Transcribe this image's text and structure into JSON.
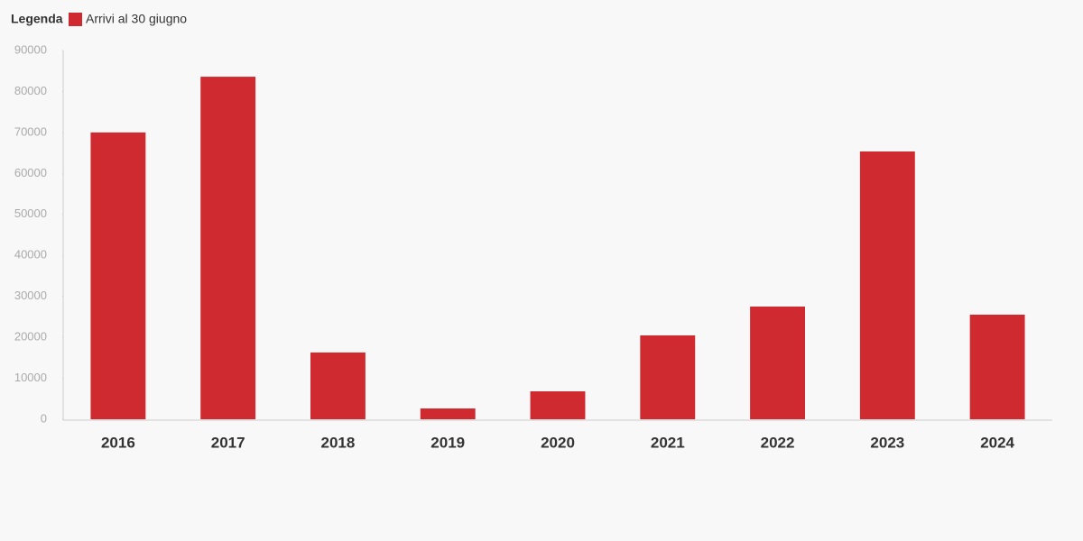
{
  "chart_data": {
    "type": "bar",
    "legend_title": "Legenda",
    "categories": [
      "2016",
      "2017",
      "2018",
      "2019",
      "2020",
      "2021",
      "2022",
      "2023",
      "2024"
    ],
    "series": [
      {
        "name": "Arrivi al 30 giugno",
        "color": "#cf2a30",
        "values": [
          70000,
          83600,
          16300,
          2640,
          6820,
          20470,
          27510,
          65360,
          25530
        ]
      }
    ],
    "ylim": [
      0,
      90000
    ],
    "yticks": [
      0,
      10000,
      20000,
      30000,
      40000,
      50000,
      60000,
      70000,
      80000,
      90000
    ],
    "grid": false
  }
}
